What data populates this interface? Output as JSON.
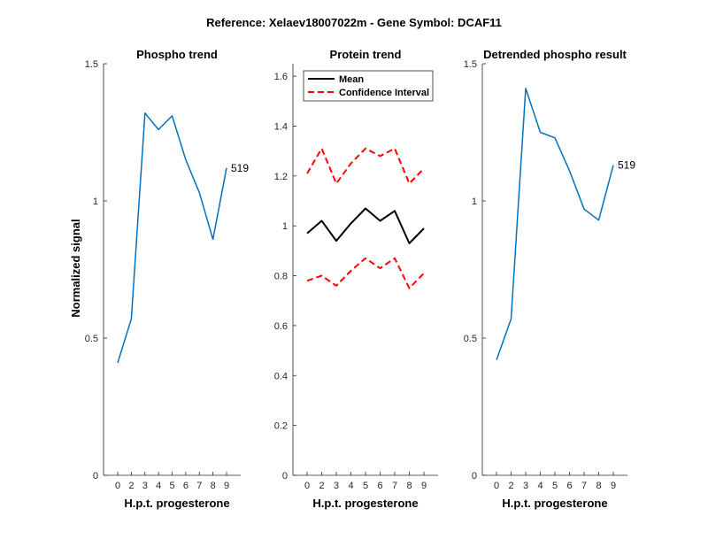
{
  "figure_title": "Reference:  Xelaev18007022m - Gene Symbol:  DCAF11",
  "colors": {
    "phospho": "#0072BD",
    "mean": "#000000",
    "ci": "#FF0000",
    "axis": "#262626"
  },
  "chart_data": [
    {
      "type": "line",
      "title": "Phospho trend",
      "xlabel": "H.p.t. progesterone",
      "ylabel": "Normalized signal",
      "ylim": [
        0,
        1.5
      ],
      "yticks": [
        "0",
        "0.5",
        "1",
        "1.5"
      ],
      "x": [
        "0",
        "2",
        "3",
        "4",
        "5",
        "6",
        "7",
        "8",
        "9"
      ],
      "series": [
        {
          "values": [
            0.41,
            0.57,
            1.32,
            1.26,
            1.31,
            1.15,
            1.03,
            0.86,
            1.12
          ]
        }
      ],
      "annotation": "519"
    },
    {
      "type": "line",
      "title": "Protein trend",
      "xlabel": "H.p.t. progesterone",
      "ylabel": "",
      "ylim": [
        0,
        1.65
      ],
      "yticks": [
        "0",
        "0.2",
        "0.4",
        "0.6",
        "0.8",
        "1",
        "1.2",
        "1.4",
        "1.6"
      ],
      "x": [
        "0",
        "2",
        "3",
        "4",
        "5",
        "6",
        "7",
        "8",
        "9"
      ],
      "legend_position": "top-left",
      "series": [
        {
          "name": "Mean",
          "values": [
            0.97,
            1.02,
            0.94,
            1.01,
            1.07,
            1.02,
            1.06,
            0.93,
            0.99
          ]
        },
        {
          "name": "Confidence Interval",
          "values": [
            1.21,
            1.31,
            1.17,
            1.25,
            1.31,
            1.28,
            1.31,
            1.17,
            1.23
          ]
        },
        {
          "values": [
            0.78,
            0.8,
            0.76,
            0.82,
            0.87,
            0.83,
            0.87,
            0.75,
            0.81
          ]
        }
      ]
    },
    {
      "type": "line",
      "title": "Detrended phospho result",
      "xlabel": "H.p.t. progesterone",
      "ylabel": "",
      "ylim": [
        0,
        1.5
      ],
      "yticks": [
        "0",
        "0.5",
        "1",
        "1.5"
      ],
      "x": [
        "0",
        "2",
        "3",
        "4",
        "5",
        "6",
        "7",
        "8",
        "9"
      ],
      "series": [
        {
          "values": [
            0.42,
            0.57,
            1.41,
            1.25,
            1.23,
            1.11,
            0.97,
            0.93,
            1.13
          ]
        }
      ],
      "annotation": "519"
    }
  ]
}
